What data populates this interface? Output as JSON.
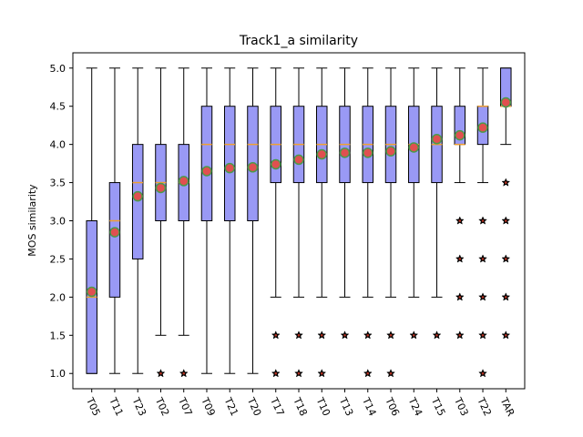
{
  "chart_data": {
    "type": "box",
    "title": "Track1_a similarity",
    "xlabel": "",
    "ylabel": "MOS similarity",
    "ylim": [
      0.8,
      5.2
    ],
    "yticks": [
      "1.0",
      "1.5",
      "2.0",
      "2.5",
      "3.0",
      "3.5",
      "4.0",
      "4.5",
      "5.0"
    ],
    "categories": [
      "T05",
      "T11",
      "T23",
      "T02",
      "T07",
      "T09",
      "T21",
      "T20",
      "T17",
      "T18",
      "T10",
      "T13",
      "T14",
      "T06",
      "T24",
      "T15",
      "T03",
      "T22",
      "TAR"
    ],
    "grid": false,
    "colors": {
      "box_fill": "#9999f5",
      "median": "#f0a030",
      "mean": "#e05050",
      "mean_edge": "#4a9a4a",
      "outlier": "#000000",
      "outlier_center": "#b03020"
    },
    "boxes": [
      {
        "name": "T05",
        "whislo": 1.0,
        "q1": 1.0,
        "med": 2.0,
        "q3": 3.0,
        "whishi": 5.0,
        "mean": 2.07,
        "fliers": []
      },
      {
        "name": "T11",
        "whislo": 1.0,
        "q1": 2.0,
        "med": 3.0,
        "q3": 3.5,
        "whishi": 5.0,
        "mean": 2.85,
        "fliers": []
      },
      {
        "name": "T23",
        "whislo": 1.0,
        "q1": 2.5,
        "med": 3.5,
        "q3": 4.0,
        "whishi": 5.0,
        "mean": 3.32,
        "fliers": []
      },
      {
        "name": "T02",
        "whislo": 1.5,
        "q1": 3.0,
        "med": 3.5,
        "q3": 4.0,
        "whishi": 5.0,
        "mean": 3.43,
        "fliers": [
          1.0
        ]
      },
      {
        "name": "T07",
        "whislo": 1.5,
        "q1": 3.0,
        "med": 3.5,
        "q3": 4.0,
        "whishi": 5.0,
        "mean": 3.52,
        "fliers": [
          1.0
        ]
      },
      {
        "name": "T09",
        "whislo": 1.0,
        "q1": 3.0,
        "med": 4.0,
        "q3": 4.5,
        "whishi": 5.0,
        "mean": 3.65,
        "fliers": []
      },
      {
        "name": "T21",
        "whislo": 1.0,
        "q1": 3.0,
        "med": 4.0,
        "q3": 4.5,
        "whishi": 5.0,
        "mean": 3.69,
        "fliers": []
      },
      {
        "name": "T20",
        "whislo": 1.0,
        "q1": 3.0,
        "med": 4.0,
        "q3": 4.5,
        "whishi": 5.0,
        "mean": 3.7,
        "fliers": []
      },
      {
        "name": "T17",
        "whislo": 2.0,
        "q1": 3.5,
        "med": 4.0,
        "q3": 4.5,
        "whishi": 5.0,
        "mean": 3.74,
        "fliers": [
          1.5,
          1.0
        ]
      },
      {
        "name": "T18",
        "whislo": 2.0,
        "q1": 3.5,
        "med": 4.0,
        "q3": 4.5,
        "whishi": 5.0,
        "mean": 3.8,
        "fliers": [
          1.5,
          1.0
        ]
      },
      {
        "name": "T10",
        "whislo": 2.0,
        "q1": 3.5,
        "med": 4.0,
        "q3": 4.5,
        "whishi": 5.0,
        "mean": 3.87,
        "fliers": [
          1.5,
          1.0
        ]
      },
      {
        "name": "T13",
        "whislo": 2.0,
        "q1": 3.5,
        "med": 4.0,
        "q3": 4.5,
        "whishi": 5.0,
        "mean": 3.89,
        "fliers": [
          1.5
        ]
      },
      {
        "name": "T14",
        "whislo": 2.0,
        "q1": 3.5,
        "med": 4.0,
        "q3": 4.5,
        "whishi": 5.0,
        "mean": 3.89,
        "fliers": [
          1.5,
          1.0
        ]
      },
      {
        "name": "T06",
        "whislo": 2.0,
        "q1": 3.5,
        "med": 4.0,
        "q3": 4.5,
        "whishi": 5.0,
        "mean": 3.91,
        "fliers": [
          1.5,
          1.0
        ]
      },
      {
        "name": "T24",
        "whislo": 2.0,
        "q1": 3.5,
        "med": 4.0,
        "q3": 4.5,
        "whishi": 5.0,
        "mean": 3.96,
        "fliers": [
          1.5
        ]
      },
      {
        "name": "T15",
        "whislo": 2.0,
        "q1": 3.5,
        "med": 4.0,
        "q3": 4.5,
        "whishi": 5.0,
        "mean": 4.07,
        "fliers": [
          1.5
        ]
      },
      {
        "name": "T03",
        "whislo": 3.5,
        "q1": 4.0,
        "med": 4.0,
        "q3": 4.5,
        "whishi": 5.0,
        "mean": 4.12,
        "fliers": [
          3.0,
          2.5,
          2.0,
          1.5
        ]
      },
      {
        "name": "T22",
        "whislo": 3.5,
        "q1": 4.0,
        "med": 4.5,
        "q3": 4.5,
        "whishi": 5.0,
        "mean": 4.22,
        "fliers": [
          3.0,
          2.5,
          2.0,
          1.5,
          1.0
        ]
      },
      {
        "name": "TAR",
        "whislo": 4.0,
        "q1": 4.5,
        "med": 4.5,
        "q3": 5.0,
        "whishi": 5.0,
        "mean": 4.55,
        "fliers": [
          3.5,
          3.0,
          2.5,
          2.0,
          1.5
        ]
      }
    ]
  }
}
